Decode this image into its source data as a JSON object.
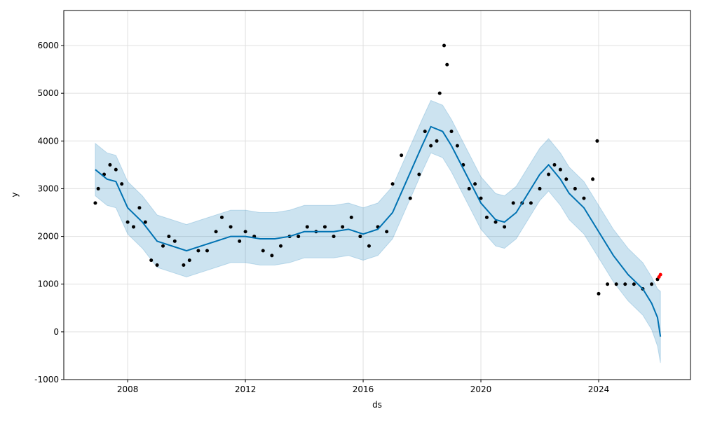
{
  "chart_data": {
    "type": "forecast",
    "xlabel": "ds",
    "ylabel": "y",
    "xlim": [
      2005.83,
      2027.12
    ],
    "ylim": [
      -1000,
      6734
    ],
    "xticks": [
      2008,
      2012,
      2016,
      2020,
      2024
    ],
    "yticks": [
      -1000,
      0,
      1000,
      2000,
      3000,
      4000,
      5000,
      6000
    ],
    "grid": true,
    "observed": {
      "color": "#000000",
      "x": [
        2006.9,
        2007.0,
        2007.2,
        2007.4,
        2007.6,
        2007.8,
        2008.0,
        2008.2,
        2008.4,
        2008.6,
        2008.8,
        2009.0,
        2009.2,
        2009.4,
        2009.6,
        2009.9,
        2010.1,
        2010.4,
        2010.7,
        2011.0,
        2011.2,
        2011.5,
        2011.8,
        2012.0,
        2012.3,
        2012.6,
        2012.9,
        2013.2,
        2013.5,
        2013.8,
        2014.1,
        2014.4,
        2014.7,
        2015.0,
        2015.3,
        2015.6,
        2015.9,
        2016.2,
        2016.5,
        2016.8,
        2017.0,
        2017.3,
        2017.6,
        2017.9,
        2018.1,
        2018.3,
        2018.5,
        2018.6,
        2018.75,
        2018.85,
        2019.0,
        2019.2,
        2019.4,
        2019.6,
        2019.8,
        2020.0,
        2020.2,
        2020.5,
        2020.8,
        2021.1,
        2021.4,
        2021.7,
        2022.0,
        2022.3,
        2022.5,
        2022.7,
        2022.9,
        2023.2,
        2023.5,
        2023.8,
        2023.95,
        2024.0,
        2024.3,
        2024.6,
        2024.9,
        2025.2,
        2025.5,
        2025.8,
        2026.0
      ],
      "y": [
        2700,
        3000,
        3300,
        3500,
        3400,
        3100,
        2300,
        2200,
        2600,
        2300,
        1500,
        1400,
        1800,
        2000,
        1900,
        1400,
        1500,
        1700,
        1700,
        2100,
        2400,
        2200,
        1900,
        2100,
        2000,
        1700,
        1600,
        1800,
        2000,
        2000,
        2200,
        2100,
        2200,
        2000,
        2200,
        2400,
        2000,
        1800,
        2200,
        2100,
        3100,
        3700,
        2800,
        3300,
        4200,
        3900,
        4000,
        5000,
        6000,
        5600,
        4200,
        3900,
        3500,
        3000,
        3100,
        2800,
        2400,
        2300,
        2200,
        2700,
        2700,
        2700,
        3000,
        3300,
        3500,
        3400,
        3200,
        3000,
        2800,
        3200,
        4000,
        800,
        1000,
        1000,
        1000,
        1000,
        900,
        1000,
        1100
      ]
    },
    "recent": {
      "color": "#ff0000",
      "x": [
        2026.05,
        2026.1
      ],
      "y": [
        1150,
        1200
      ]
    },
    "forecast": {
      "color": "#0072b2",
      "band_color": "#0072b2",
      "x": [
        2006.9,
        2007.3,
        2007.6,
        2008.0,
        2008.5,
        2009.0,
        2009.5,
        2010.0,
        2010.5,
        2011.0,
        2011.5,
        2012.0,
        2012.5,
        2013.0,
        2013.5,
        2014.0,
        2014.5,
        2015.0,
        2015.5,
        2016.0,
        2016.5,
        2017.0,
        2017.5,
        2018.0,
        2018.3,
        2018.7,
        2019.0,
        2019.5,
        2020.0,
        2020.5,
        2020.8,
        2021.2,
        2021.6,
        2022.0,
        2022.3,
        2022.7,
        2023.0,
        2023.5,
        2024.0,
        2024.5,
        2025.0,
        2025.5,
        2025.8,
        2026.0,
        2026.1
      ],
      "yhat": [
        3400,
        3200,
        3150,
        2600,
        2300,
        1900,
        1800,
        1700,
        1800,
        1900,
        2000,
        2000,
        1950,
        1950,
        2000,
        2100,
        2100,
        2100,
        2150,
        2050,
        2150,
        2500,
        3200,
        3900,
        4300,
        4200,
        3900,
        3300,
        2700,
        2350,
        2300,
        2500,
        2900,
        3300,
        3500,
        3200,
        2900,
        2600,
        2100,
        1600,
        1200,
        900,
        600,
        300,
        -100
      ],
      "upper": [
        3950,
        3750,
        3700,
        3150,
        2850,
        2450,
        2350,
        2250,
        2350,
        2450,
        2550,
        2550,
        2500,
        2500,
        2550,
        2650,
        2650,
        2650,
        2700,
        2600,
        2700,
        3050,
        3750,
        4450,
        4850,
        4750,
        4450,
        3850,
        3250,
        2900,
        2850,
        3050,
        3450,
        3850,
        4050,
        3750,
        3450,
        3150,
        2650,
        2150,
        1750,
        1450,
        1150,
        900,
        850
      ],
      "lower": [
        2850,
        2650,
        2600,
        2050,
        1750,
        1350,
        1250,
        1150,
        1250,
        1350,
        1450,
        1450,
        1400,
        1400,
        1450,
        1550,
        1550,
        1550,
        1600,
        1500,
        1600,
        1950,
        2650,
        3350,
        3750,
        3650,
        3350,
        2750,
        2150,
        1800,
        1750,
        1950,
        2350,
        2750,
        2950,
        2650,
        2350,
        2050,
        1550,
        1050,
        650,
        350,
        50,
        -300,
        -650
      ]
    }
  }
}
